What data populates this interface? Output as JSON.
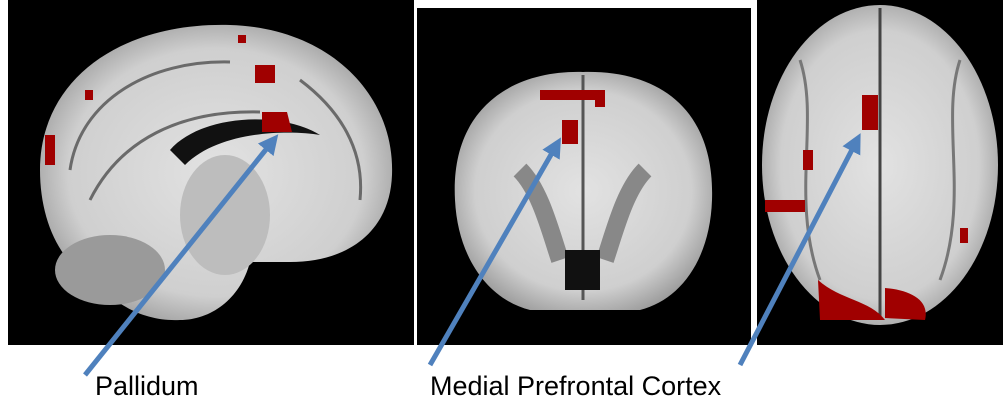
{
  "labels": [
    "Pallidum",
    "Medial Prefrontal Cortex"
  ]
}
